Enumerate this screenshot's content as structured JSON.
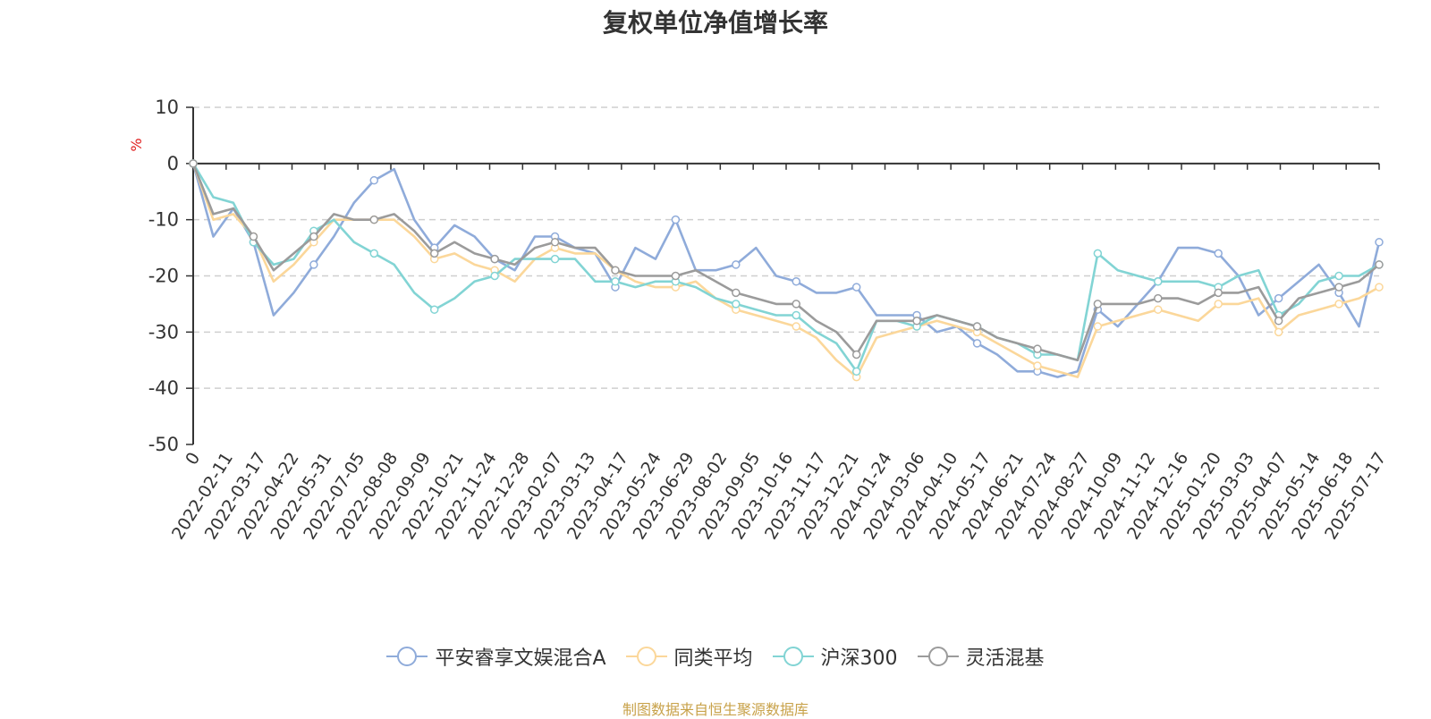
{
  "chart_data": {
    "type": "line",
    "title": "复权单位净值增长率",
    "ylabel": "%",
    "ylim": [
      -50,
      10
    ],
    "yticks": [
      10,
      0,
      -10,
      -20,
      -30,
      -40,
      -50
    ],
    "x_tick_labels": [
      "0",
      "2022-02-11",
      "2022-03-17",
      "2022-04-22",
      "2022-05-31",
      "2022-07-05",
      "2022-08-08",
      "2022-09-09",
      "2022-10-21",
      "2022-11-24",
      "2022-12-28",
      "2023-02-07",
      "2023-03-13",
      "2023-04-17",
      "2023-05-24",
      "2023-06-29",
      "2023-08-02",
      "2023-09-05",
      "2023-10-16",
      "2023-11-17",
      "2023-12-21",
      "2024-01-24",
      "2024-03-06",
      "2024-04-10",
      "2024-05-17",
      "2024-06-21",
      "2024-07-24",
      "2024-08-27",
      "2024-10-09",
      "2024-11-12",
      "2024-12-16",
      "2025-01-20",
      "2025-03-03",
      "2025-04-07",
      "2025-05-14",
      "2025-06-18",
      "2025-07-17"
    ],
    "grid": "horizontal dashed",
    "legend_position": "bottom",
    "series": [
      {
        "name": "平安睿享文娱混合A",
        "color": "#8fabda",
        "values": [
          0,
          -13,
          -8,
          -14,
          -27,
          -23,
          -18,
          -13,
          -7,
          -3,
          -1,
          -10,
          -15,
          -11,
          -13,
          -17,
          -19,
          -13,
          -13,
          -15,
          -16,
          -22,
          -15,
          -17,
          -10,
          -19,
          -19,
          -18,
          -15,
          -20,
          -21,
          -23,
          -23,
          -22,
          -27,
          -27,
          -27,
          -30,
          -29,
          -32,
          -34,
          -37,
          -37,
          -38,
          -37,
          -26,
          -29,
          -25,
          -21,
          -15,
          -15,
          -16,
          -20,
          -27,
          -24,
          -21,
          -18,
          -23,
          -29,
          -14
        ]
      },
      {
        "name": "同类平均",
        "color": "#fbd79a",
        "values": [
          0,
          -10,
          -9,
          -13,
          -21,
          -18,
          -14,
          -10,
          -10,
          -10,
          -10,
          -13,
          -17,
          -16,
          -18,
          -19,
          -21,
          -17,
          -15,
          -16,
          -16,
          -19,
          -21,
          -22,
          -22,
          -21,
          -24,
          -26,
          -27,
          -28,
          -29,
          -31,
          -35,
          -38,
          -31,
          -30,
          -29,
          -28,
          -29,
          -30,
          -32,
          -34,
          -36,
          -37,
          -38,
          -29,
          -28,
          -27,
          -26,
          -27,
          -28,
          -25,
          -25,
          -24,
          -30,
          -27,
          -26,
          -25,
          -24,
          -22
        ]
      },
      {
        "name": "沪深300",
        "color": "#82d4d4",
        "values": [
          0,
          -6,
          -7,
          -14,
          -18,
          -17,
          -12,
          -10,
          -14,
          -16,
          -18,
          -23,
          -26,
          -24,
          -21,
          -20,
          -17,
          -17,
          -17,
          -17,
          -21,
          -21,
          -22,
          -21,
          -21,
          -22,
          -24,
          -25,
          -26,
          -27,
          -27,
          -30,
          -32,
          -37,
          -28,
          -28,
          -29,
          -27,
          -28,
          -29,
          -31,
          -32,
          -34,
          -34,
          -35,
          -16,
          -19,
          -20,
          -21,
          -21,
          -21,
          -22,
          -20,
          -19,
          -27,
          -25,
          -21,
          -20,
          -20,
          -18
        ]
      },
      {
        "name": "灵活混基",
        "color": "#9b9b9b",
        "values": [
          0,
          -9,
          -8,
          -13,
          -19,
          -16,
          -13,
          -9,
          -10,
          -10,
          -9,
          -12,
          -16,
          -14,
          -16,
          -17,
          -18,
          -15,
          -14,
          -15,
          -15,
          -19,
          -20,
          -20,
          -20,
          -19,
          -21,
          -23,
          -24,
          -25,
          -25,
          -28,
          -30,
          -34,
          -28,
          -28,
          -28,
          -27,
          -28,
          -29,
          -31,
          -32,
          -33,
          -34,
          -35,
          -25,
          -25,
          -25,
          -24,
          -24,
          -25,
          -23,
          -23,
          -22,
          -28,
          -24,
          -23,
          -22,
          -21,
          -18
        ]
      }
    ]
  },
  "footnote": "制图数据来自恒生聚源数据库"
}
